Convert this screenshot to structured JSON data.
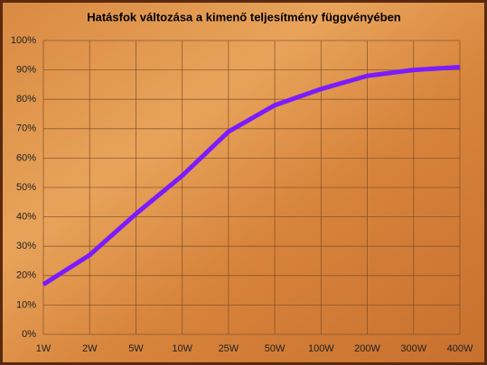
{
  "chart_data": {
    "type": "line",
    "title": "Hatásfok változása a kimenő teljesítmény függvényében",
    "categories": [
      "1W",
      "2W",
      "5W",
      "10W",
      "25W",
      "50W",
      "100W",
      "200W",
      "300W",
      "400W"
    ],
    "values": [
      17,
      27,
      41,
      54,
      69,
      78,
      83.5,
      88,
      90,
      91
    ],
    "color": "#7a1cff",
    "ylim": [
      0,
      100
    ],
    "yticks": [
      {
        "value": 0,
        "label": "0%"
      },
      {
        "value": 10,
        "label": "10%"
      },
      {
        "value": 20,
        "label": "20%"
      },
      {
        "value": 30,
        "label": "30%"
      },
      {
        "value": 40,
        "label": "40%"
      },
      {
        "value": 50,
        "label": "50%"
      },
      {
        "value": 60,
        "label": "60%"
      },
      {
        "value": 70,
        "label": "70%"
      },
      {
        "value": 80,
        "label": "80%"
      },
      {
        "value": 90,
        "label": "90%"
      },
      {
        "value": 100,
        "label": "100%"
      }
    ],
    "grid": true
  }
}
